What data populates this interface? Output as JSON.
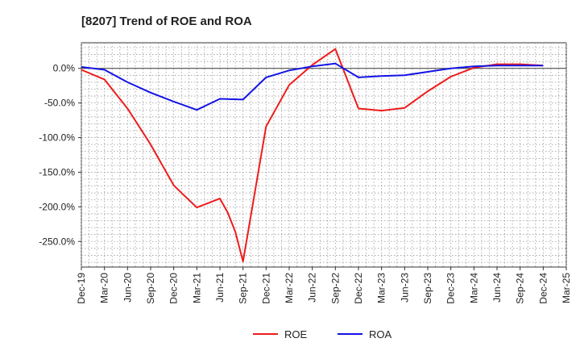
{
  "chart_data": {
    "type": "line",
    "title": "[8207]  Trend of ROE and ROA",
    "xlabel": "",
    "ylabel": "",
    "x_tick_labels": [
      "Dec-19",
      "Mar-20",
      "Jun-20",
      "Sep-20",
      "Dec-20",
      "Mar-21",
      "Jun-21",
      "Sep-21",
      "Dec-21",
      "Mar-22",
      "Jun-22",
      "Sep-22",
      "Dec-22",
      "Mar-23",
      "Jun-23",
      "Sep-23",
      "Dec-23",
      "Mar-24",
      "Jun-24",
      "Sep-24",
      "Dec-24",
      "Mar-25"
    ],
    "y_tick_labels": [
      "0.0%",
      "-50.0%",
      "-100.0%",
      "-150.0%",
      "-200.0%",
      "-250.0%"
    ],
    "y_ticks": [
      0,
      -50,
      -100,
      -150,
      -200,
      -250
    ],
    "ylim": [
      -287,
      37
    ],
    "grid": true,
    "legend_position": "bottom-center",
    "series": [
      {
        "name": "ROE",
        "color": "#ee1c1c",
        "x": [
          "Dec-19",
          "Mar-20",
          "Jun-20",
          "Sep-20",
          "Dec-20",
          "Mar-21",
          "Jun-21",
          "Jul-21",
          "Aug-21",
          "Sep-21",
          "Dec-21",
          "Mar-22",
          "Jun-22",
          "Sep-22",
          "Dec-22",
          "Mar-23",
          "Jun-23",
          "Sep-23",
          "Dec-23",
          "Mar-24",
          "Jun-24",
          "Sep-24",
          "Dec-24"
        ],
        "values": [
          -2,
          -16,
          -58,
          -110,
          -169,
          -201,
          -188,
          -208,
          -236,
          -279,
          -84,
          -24,
          5,
          28,
          -58,
          -61,
          -57,
          -33,
          -12,
          1,
          6,
          6,
          4
        ]
      },
      {
        "name": "ROA",
        "color": "#1414e6",
        "x": [
          "Dec-19",
          "Mar-20",
          "Jun-20",
          "Sep-20",
          "Dec-20",
          "Mar-21",
          "Jun-21",
          "Sep-21",
          "Dec-21",
          "Mar-22",
          "Jun-22",
          "Sep-22",
          "Dec-22",
          "Mar-23",
          "Jun-23",
          "Sep-23",
          "Dec-23",
          "Mar-24",
          "Jun-24",
          "Sep-24",
          "Dec-24"
        ],
        "values": [
          2,
          -2,
          -20,
          -35,
          -48,
          -60,
          -44,
          -45,
          -13,
          -3,
          3,
          7,
          -13,
          -11,
          -10,
          -5,
          0,
          3,
          4,
          4,
          4
        ]
      }
    ]
  }
}
